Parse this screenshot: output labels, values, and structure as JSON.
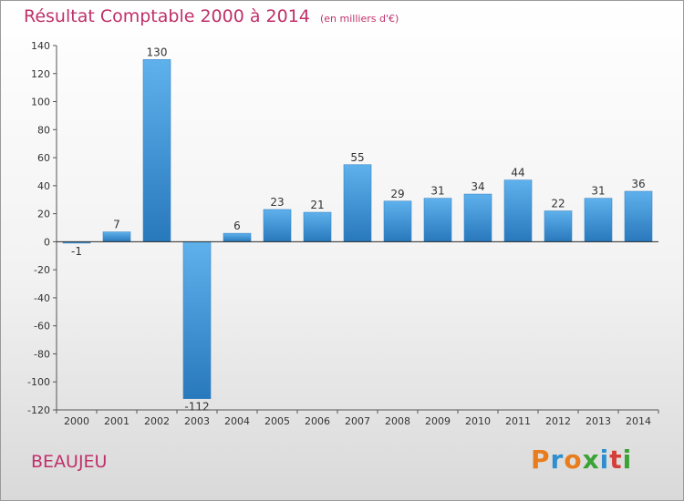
{
  "title": "Résultat Comptable 2000 à 2014",
  "unit": "(en milliers d'€)",
  "place": "BEAUJEU",
  "logo": {
    "text": "Proxiti",
    "colors": [
      "#e87d1e",
      "#2f8fce",
      "#e87d1e",
      "#3aa335",
      "#2f8fce",
      "#d43f3a",
      "#3aa335"
    ]
  },
  "colors": {
    "bar_light": "#5fb1ec",
    "bar_dark": "#2878bc",
    "accent": "#c0306a"
  },
  "chart_data": {
    "type": "bar",
    "title": "Résultat Comptable 2000 à 2014",
    "xlabel": "",
    "ylabel": "",
    "categories": [
      "2000",
      "2001",
      "2002",
      "2003",
      "2004",
      "2005",
      "2006",
      "2007",
      "2008",
      "2009",
      "2010",
      "2011",
      "2012",
      "2013",
      "2014"
    ],
    "values": [
      -1,
      7,
      130,
      -112,
      6,
      23,
      21,
      55,
      29,
      31,
      34,
      44,
      22,
      31,
      36
    ],
    "labels": [
      "-1",
      "7",
      "130",
      "-112",
      "6",
      "23",
      "21",
      "55",
      "29",
      "31",
      "34",
      "44",
      "22",
      "31",
      "36"
    ],
    "ylim": [
      -120,
      140
    ],
    "yticks": [
      140,
      120,
      100,
      80,
      60,
      40,
      20,
      0,
      -20,
      -40,
      -60,
      -80,
      -100,
      -120
    ],
    "grid": false,
    "legend": "none"
  }
}
